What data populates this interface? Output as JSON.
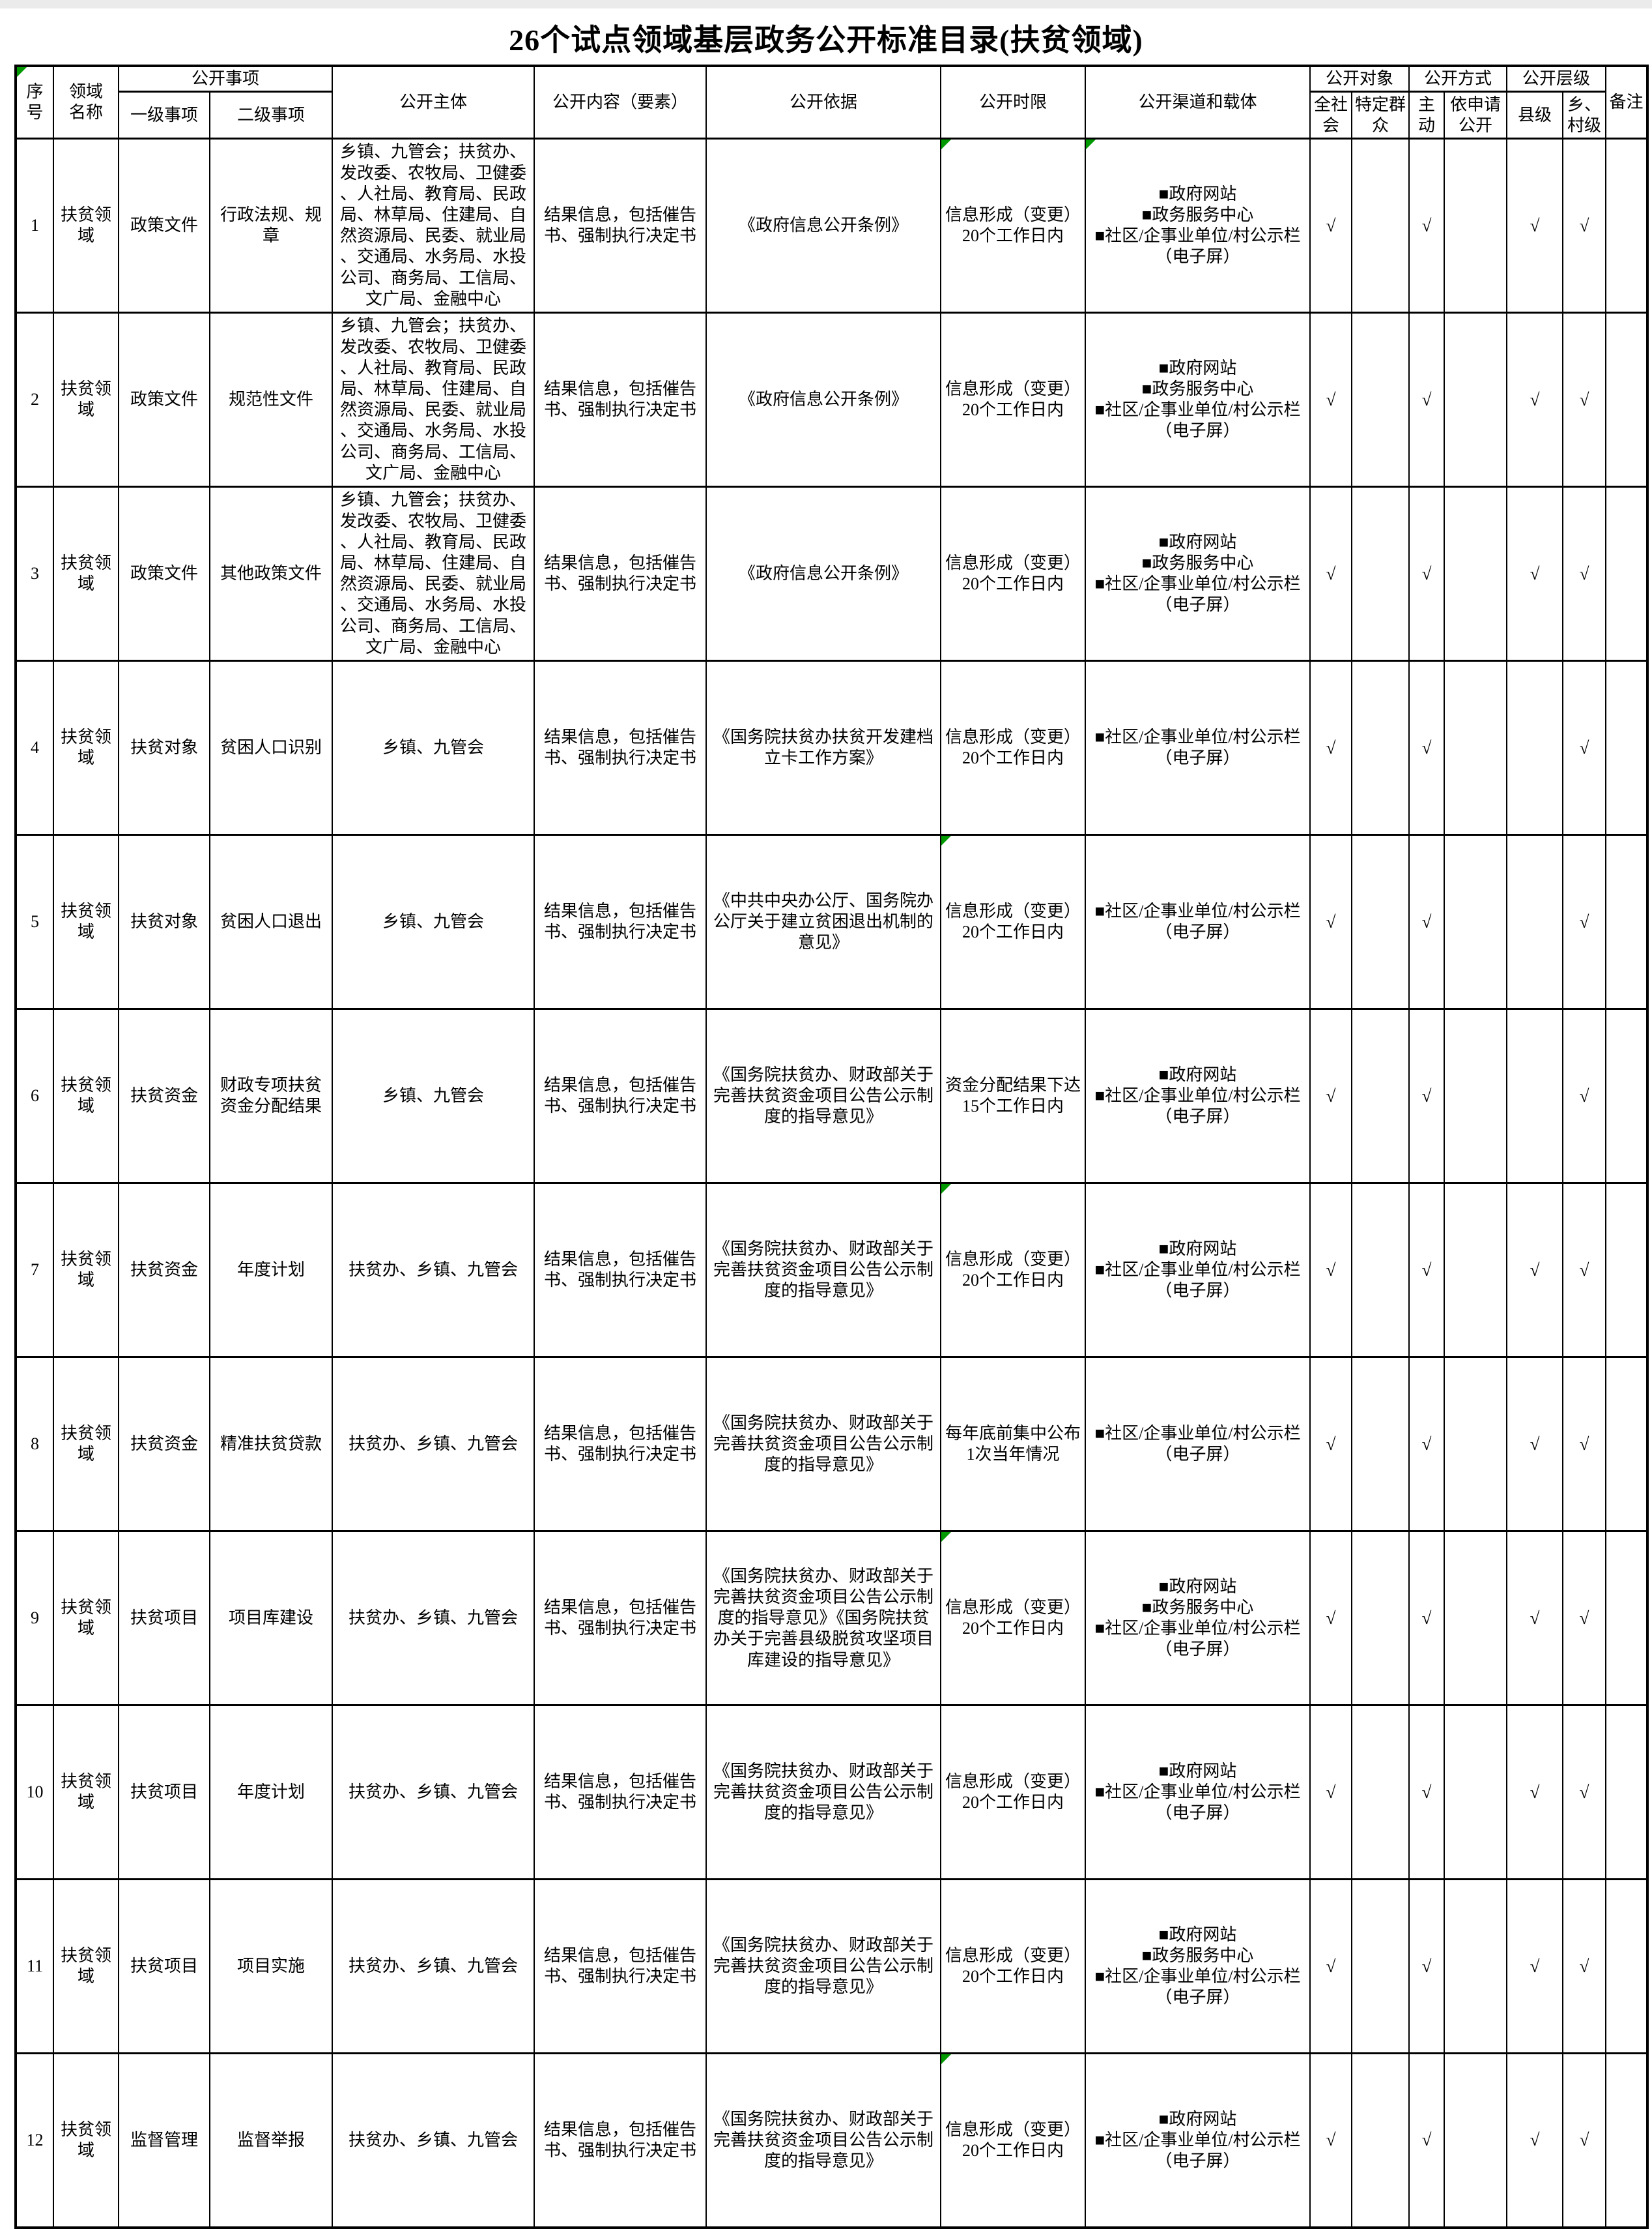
{
  "title": "26个试点领域基层政务公开标准目录(扶贫领域)",
  "check_mark": "√",
  "comment_flag_color": "#009a00",
  "headers": {
    "no": "序号",
    "domain": "领域\n名称",
    "matters_group": "公开事项",
    "level1": "一级事项",
    "level2": "二级事项",
    "subject": "公开主体",
    "content": "公开内容（要素）",
    "basis": "公开依据",
    "time_limit": "公开时限",
    "channels": "公开渠道和载体",
    "targets_group": "公开对象",
    "target_all": "全社\n会",
    "target_specific": "特定群\n众",
    "methods_group": "公开方式",
    "method_proactive": "主\n动",
    "method_on_request": "依申请\n公开",
    "levels_group": "公开层级",
    "level_county": "县级",
    "level_township": "乡、\n村级",
    "remarks": "备注"
  },
  "rows": [
    {
      "no": "1",
      "domain": "扶贫领域",
      "level1": "政策文件",
      "level2": "行政法规、规章",
      "subject": "乡镇、九管会；扶贫办、发改委、农牧局、卫健委、人社局、教育局、民政局、林草局、住建局、自然资源局、民委、就业局、交通局、水务局、水投公司、商务局、工信局、文广局、金融中心",
      "content": "结果信息，包括催告书、强制执行决定书",
      "basis": "《政府信息公开条例》",
      "time_limit": "信息形成（变更）20个工作日内",
      "channels": [
        "■政府网站",
        "■政务服务中心",
        "■社区/企事业单位/村公示栏（电子屏）"
      ],
      "checks": {
        "all": "√",
        "specific": "",
        "proactive": "√",
        "on_request": "",
        "county": "√",
        "township": "√"
      },
      "remarks": "",
      "comment_flags": [
        "time_limit",
        "channels"
      ]
    },
    {
      "no": "2",
      "domain": "扶贫领域",
      "level1": "政策文件",
      "level2": "规范性文件",
      "subject": "乡镇、九管会；扶贫办、发改委、农牧局、卫健委、人社局、教育局、民政局、林草局、住建局、自然资源局、民委、就业局、交通局、水务局、水投公司、商务局、工信局、文广局、金融中心",
      "content": "结果信息，包括催告书、强制执行决定书",
      "basis": "《政府信息公开条例》",
      "time_limit": "信息形成（变更）20个工作日内",
      "channels": [
        "■政府网站",
        "■政务服务中心",
        "■社区/企事业单位/村公示栏（电子屏）"
      ],
      "checks": {
        "all": "√",
        "specific": "",
        "proactive": "√",
        "on_request": "",
        "county": "√",
        "township": "√"
      },
      "remarks": "",
      "comment_flags": []
    },
    {
      "no": "3",
      "domain": "扶贫领域",
      "level1": "政策文件",
      "level2": "其他政策文件",
      "subject": "乡镇、九管会；扶贫办、发改委、农牧局、卫健委、人社局、教育局、民政局、林草局、住建局、自然资源局、民委、就业局、交通局、水务局、水投公司、商务局、工信局、文广局、金融中心",
      "content": "结果信息，包括催告书、强制执行决定书",
      "basis": "《政府信息公开条例》",
      "time_limit": "信息形成（变更）20个工作日内",
      "channels": [
        "■政府网站",
        "■政务服务中心",
        "■社区/企事业单位/村公示栏（电子屏）"
      ],
      "checks": {
        "all": "√",
        "specific": "",
        "proactive": "√",
        "on_request": "",
        "county": "√",
        "township": "√"
      },
      "remarks": "",
      "comment_flags": []
    },
    {
      "no": "4",
      "domain": "扶贫领域",
      "level1": "扶贫对象",
      "level2": "贫困人口识别",
      "subject": "乡镇、九管会",
      "content": "结果信息，包括催告书、强制执行决定书",
      "basis": "《国务院扶贫办扶贫开发建档立卡工作方案》",
      "time_limit": "信息形成（变更）20个工作日内",
      "channels": [
        "■社区/企事业单位/村公示栏（电子屏）"
      ],
      "checks": {
        "all": "√",
        "specific": "",
        "proactive": "√",
        "on_request": "",
        "county": "",
        "township": "√"
      },
      "remarks": "",
      "comment_flags": []
    },
    {
      "no": "5",
      "domain": "扶贫领域",
      "level1": "扶贫对象",
      "level2": "贫困人口退出",
      "subject": "乡镇、九管会",
      "content": "结果信息，包括催告书、强制执行决定书",
      "basis": "《中共中央办公厅、国务院办公厅关于建立贫困退出机制的意见》",
      "time_limit": "信息形成（变更）20个工作日内",
      "channels": [
        "■社区/企事业单位/村公示栏（电子屏）"
      ],
      "checks": {
        "all": "√",
        "specific": "",
        "proactive": "√",
        "on_request": "",
        "county": "",
        "township": "√"
      },
      "remarks": "",
      "comment_flags": [
        "time_limit"
      ]
    },
    {
      "no": "6",
      "domain": "扶贫领域",
      "level1": "扶贫资金",
      "level2": "财政专项扶贫资金分配结果",
      "subject": "乡镇、九管会",
      "content": "结果信息，包括催告书、强制执行决定书",
      "basis": "《国务院扶贫办、财政部关于完善扶贫资金项目公告公示制度的指导意见》",
      "time_limit": "资金分配结果下达15个工作日内",
      "channels": [
        "■政府网站",
        "■社区/企事业单位/村公示栏（电子屏）"
      ],
      "checks": {
        "all": "√",
        "specific": "",
        "proactive": "√",
        "on_request": "",
        "county": "",
        "township": "√"
      },
      "remarks": "",
      "comment_flags": []
    },
    {
      "no": "7",
      "domain": "扶贫领域",
      "level1": "扶贫资金",
      "level2": "年度计划",
      "subject": "扶贫办、乡镇、九管会",
      "content": "结果信息，包括催告书、强制执行决定书",
      "basis": "《国务院扶贫办、财政部关于完善扶贫资金项目公告公示制度的指导意见》",
      "time_limit": "信息形成（变更）20个工作日内",
      "channels": [
        "■政府网站",
        "■社区/企事业单位/村公示栏（电子屏）"
      ],
      "checks": {
        "all": "√",
        "specific": "",
        "proactive": "√",
        "on_request": "",
        "county": "√",
        "township": "√"
      },
      "remarks": "",
      "comment_flags": [
        "time_limit"
      ]
    },
    {
      "no": "8",
      "domain": "扶贫领域",
      "level1": "扶贫资金",
      "level2": "精准扶贫贷款",
      "subject": "扶贫办、乡镇、九管会",
      "content": "结果信息，包括催告书、强制执行决定书",
      "basis": "《国务院扶贫办、财政部关于完善扶贫资金项目公告公示制度的指导意见》",
      "time_limit": "每年底前集中公布1次当年情况",
      "channels": [
        "■社区/企事业单位/村公示栏（电子屏）"
      ],
      "checks": {
        "all": "√",
        "specific": "",
        "proactive": "√",
        "on_request": "",
        "county": "√",
        "township": "√"
      },
      "remarks": "",
      "comment_flags": []
    },
    {
      "no": "9",
      "domain": "扶贫领域",
      "level1": "扶贫项目",
      "level2": "项目库建设",
      "subject": "扶贫办、乡镇、九管会",
      "content": "结果信息，包括催告书、强制执行决定书",
      "basis": "《国务院扶贫办、财政部关于完善扶贫资金项目公告公示制度的指导意见》《国务院扶贫办关于完善县级脱贫攻坚项目库建设的指导意见》",
      "time_limit": "信息形成（变更）20个工作日内",
      "channels": [
        "■政府网站",
        "■政务服务中心",
        "■社区/企事业单位/村公示栏（电子屏）"
      ],
      "checks": {
        "all": "√",
        "specific": "",
        "proactive": "√",
        "on_request": "",
        "county": "√",
        "township": "√"
      },
      "remarks": "",
      "comment_flags": [
        "time_limit"
      ]
    },
    {
      "no": "10",
      "domain": "扶贫领域",
      "level1": "扶贫项目",
      "level2": "年度计划",
      "subject": "扶贫办、乡镇、九管会",
      "content": "结果信息，包括催告书、强制执行决定书",
      "basis": "《国务院扶贫办、财政部关于完善扶贫资金项目公告公示制度的指导意见》",
      "time_limit": "信息形成（变更）20个工作日内",
      "channels": [
        "■政府网站",
        "■社区/企事业单位/村公示栏（电子屏）"
      ],
      "checks": {
        "all": "√",
        "specific": "",
        "proactive": "√",
        "on_request": "",
        "county": "√",
        "township": "√"
      },
      "remarks": "",
      "comment_flags": []
    },
    {
      "no": "11",
      "domain": "扶贫领域",
      "level1": "扶贫项目",
      "level2": "项目实施",
      "subject": "扶贫办、乡镇、九管会",
      "content": "结果信息，包括催告书、强制执行决定书",
      "basis": "《国务院扶贫办、财政部关于完善扶贫资金项目公告公示制度的指导意见》",
      "time_limit": "信息形成（变更）20个工作日内",
      "channels": [
        "■政府网站",
        "■政务服务中心",
        "■社区/企事业单位/村公示栏（电子屏）"
      ],
      "checks": {
        "all": "√",
        "specific": "",
        "proactive": "√",
        "on_request": "",
        "county": "√",
        "township": "√"
      },
      "remarks": "",
      "comment_flags": []
    },
    {
      "no": "12",
      "domain": "扶贫领域",
      "level1": "监督管理",
      "level2": "监督举报",
      "subject": "扶贫办、乡镇、九管会",
      "content": "结果信息，包括催告书、强制执行决定书",
      "basis": "《国务院扶贫办、财政部关于完善扶贫资金项目公告公示制度的指导意见》",
      "time_limit": "信息形成（变更）20个工作日内",
      "channels": [
        "■政府网站",
        "■社区/企事业单位/村公示栏（电子屏）"
      ],
      "checks": {
        "all": "√",
        "specific": "",
        "proactive": "√",
        "on_request": "",
        "county": "√",
        "township": "√"
      },
      "remarks": "",
      "comment_flags": [
        "time_limit"
      ]
    }
  ]
}
